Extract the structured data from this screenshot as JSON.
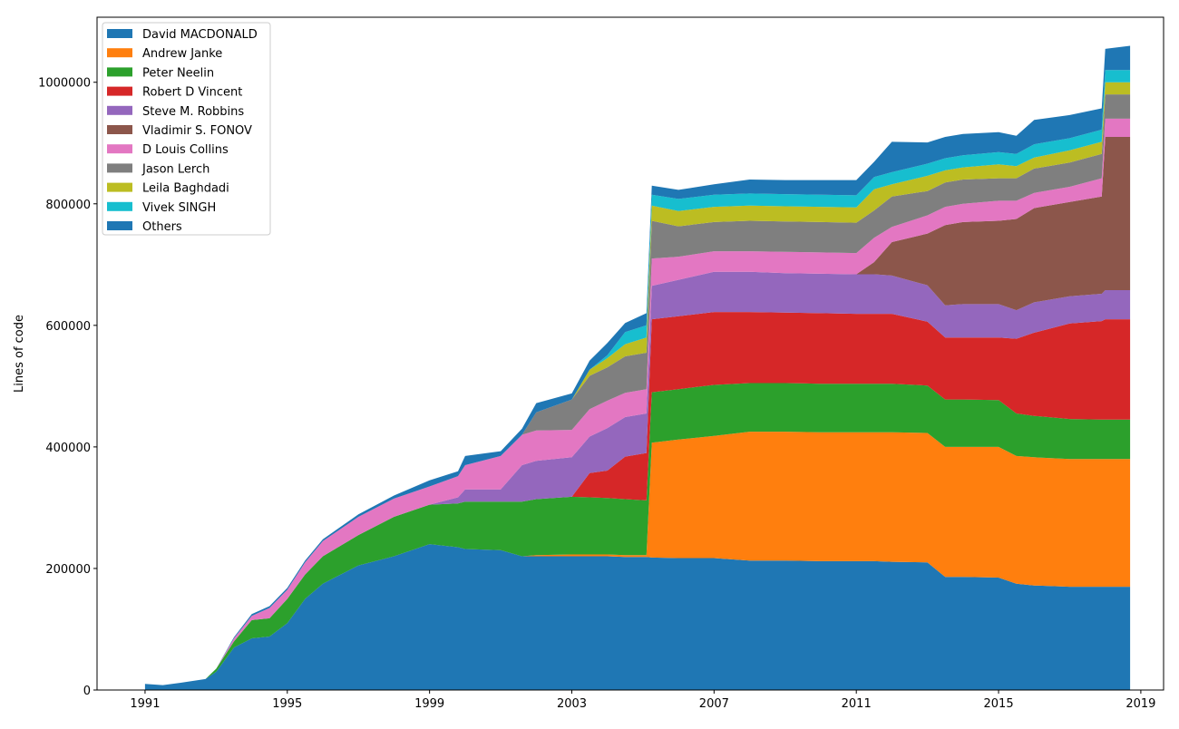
{
  "chart_data": {
    "type": "area",
    "stacked": true,
    "title": "",
    "xlabel": "",
    "ylabel": "Lines of code",
    "xlim": [
      1989.65,
      2019.64
    ],
    "ylim": [
      0,
      1107000
    ],
    "xticks": [
      1991,
      1995,
      1999,
      2003,
      2007,
      2011,
      2015,
      2019
    ],
    "yticks": [
      0,
      200000,
      400000,
      600000,
      800000,
      1000000
    ],
    "grid": false,
    "legend_position": "upper-left",
    "x": [
      1991,
      1991.5,
      1992,
      1992.7,
      1993,
      1993.5,
      1994,
      1994.5,
      1995,
      1995.5,
      1996,
      1997,
      1998,
      1999,
      1999.8,
      2000,
      2001,
      2001.6,
      2002,
      2003,
      2003.5,
      2004,
      2004.5,
      2005.1,
      2005.25,
      2006,
      2007,
      2008,
      2009,
      2010,
      2011,
      2011.5,
      2012,
      2013,
      2013.5,
      2014,
      2015,
      2015.5,
      2016,
      2017,
      2017.9,
      2018.0,
      2018.7
    ],
    "series": [
      {
        "name": "David MACDONALD",
        "color": "#1f77b4",
        "values": [
          10000,
          8000,
          12000,
          18000,
          30000,
          70000,
          85000,
          88000,
          110000,
          150000,
          175000,
          205000,
          220000,
          240000,
          235000,
          232000,
          230000,
          220000,
          220000,
          220000,
          220000,
          220000,
          219000,
          219000,
          218000,
          217000,
          217000,
          213000,
          213000,
          212000,
          212000,
          212000,
          211000,
          210000,
          186000,
          186000,
          185000,
          175000,
          172000,
          170000,
          170000,
          170000,
          170000
        ]
      },
      {
        "name": "Andrew Janke",
        "color": "#ff7f0e",
        "values": [
          0,
          0,
          0,
          0,
          0,
          0,
          0,
          0,
          0,
          0,
          0,
          0,
          0,
          0,
          0,
          0,
          0,
          0,
          2000,
          3000,
          3000,
          3000,
          3000,
          3000,
          189000,
          195000,
          201000,
          212000,
          212000,
          212000,
          212000,
          212000,
          213000,
          213000,
          214000,
          214000,
          215000,
          210000,
          211000,
          210000,
          210000,
          210000,
          210000
        ]
      },
      {
        "name": "Peter Neelin",
        "color": "#2ca02c",
        "values": [
          0,
          0,
          0,
          0,
          5000,
          10000,
          30000,
          30000,
          40000,
          40000,
          45000,
          50000,
          65000,
          65000,
          72000,
          78000,
          80000,
          90000,
          92000,
          95000,
          94000,
          93000,
          92000,
          90000,
          83000,
          83000,
          84000,
          80000,
          80000,
          80000,
          80000,
          80000,
          80000,
          78000,
          78000,
          78000,
          77000,
          70000,
          68000,
          66000,
          65000,
          65000,
          65000
        ]
      },
      {
        "name": "Robert D Vincent",
        "color": "#d62728",
        "values": [
          0,
          0,
          0,
          0,
          0,
          0,
          0,
          0,
          0,
          0,
          0,
          0,
          0,
          0,
          0,
          0,
          0,
          0,
          0,
          0,
          40000,
          45000,
          70000,
          78000,
          120000,
          120000,
          120000,
          117000,
          116000,
          116000,
          115000,
          115000,
          115000,
          105000,
          102000,
          102000,
          103000,
          123000,
          137000,
          157000,
          162000,
          165000,
          165000
        ]
      },
      {
        "name": "Steve M. Robbins",
        "color": "#9467bd",
        "values": [
          0,
          0,
          0,
          0,
          0,
          0,
          0,
          0,
          0,
          0,
          0,
          0,
          0,
          0,
          10000,
          20000,
          20000,
          60000,
          63000,
          65000,
          60000,
          70000,
          65000,
          65000,
          55000,
          60000,
          66000,
          66000,
          65000,
          65000,
          65000,
          65000,
          63000,
          60000,
          53000,
          55000,
          55000,
          47000,
          50000,
          45000,
          45000,
          48000,
          48000
        ]
      },
      {
        "name": "Vladimir S. FONOV",
        "color": "#8c564b",
        "values": [
          0,
          0,
          0,
          0,
          0,
          0,
          0,
          0,
          0,
          0,
          0,
          0,
          0,
          0,
          0,
          0,
          0,
          0,
          0,
          0,
          0,
          0,
          0,
          0,
          0,
          0,
          0,
          0,
          0,
          0,
          0,
          20000,
          55000,
          85000,
          132000,
          135000,
          137000,
          150000,
          155000,
          155000,
          160000,
          252000,
          252000
        ]
      },
      {
        "name": "D Louis Collins",
        "color": "#e377c2",
        "values": [
          0,
          0,
          0,
          0,
          0,
          5000,
          7000,
          17000,
          15000,
          20000,
          25000,
          30000,
          30000,
          30000,
          35000,
          40000,
          55000,
          50000,
          50000,
          45000,
          45000,
          45000,
          40000,
          40000,
          45000,
          38000,
          34000,
          34000,
          35000,
          35000,
          35000,
          40000,
          25000,
          30000,
          30000,
          30000,
          33000,
          30000,
          25000,
          25000,
          30000,
          30000,
          30000
        ]
      },
      {
        "name": "Jason Lerch",
        "color": "#7f7f7f",
        "values": [
          0,
          0,
          0,
          0,
          0,
          0,
          0,
          0,
          0,
          0,
          0,
          0,
          0,
          0,
          0,
          0,
          0,
          0,
          30000,
          50000,
          55000,
          55000,
          60000,
          60000,
          62000,
          50000,
          48000,
          50000,
          50000,
          50000,
          50000,
          45000,
          50000,
          40000,
          40000,
          40000,
          37000,
          37000,
          40000,
          40000,
          40000,
          40000,
          40000
        ]
      },
      {
        "name": "Leila Baghdadi",
        "color": "#bcbd22",
        "values": [
          0,
          0,
          0,
          0,
          0,
          0,
          0,
          0,
          0,
          0,
          0,
          0,
          0,
          0,
          0,
          0,
          0,
          0,
          0,
          0,
          10000,
          15000,
          20000,
          25000,
          25000,
          25000,
          25000,
          25000,
          25000,
          25000,
          25000,
          35000,
          20000,
          25000,
          20000,
          20000,
          23000,
          20000,
          18000,
          20000,
          20000,
          20000,
          20000
        ]
      },
      {
        "name": "Vivek SINGH",
        "color": "#17becf",
        "values": [
          0,
          0,
          0,
          0,
          0,
          0,
          0,
          0,
          0,
          0,
          0,
          0,
          0,
          0,
          0,
          0,
          0,
          0,
          0,
          0,
          0,
          5000,
          20000,
          20000,
          18000,
          20000,
          20000,
          20000,
          20000,
          20000,
          20000,
          20000,
          20000,
          20000,
          20000,
          20000,
          20000,
          20000,
          22000,
          20000,
          20000,
          20000,
          20000
        ]
      },
      {
        "name": "Others",
        "color": "#1f77b4",
        "values": [
          0,
          0,
          0,
          0,
          0,
          2000,
          3000,
          3000,
          3000,
          3000,
          3000,
          4000,
          5000,
          10000,
          8000,
          15000,
          8000,
          10000,
          15000,
          10000,
          15000,
          20000,
          15000,
          20000,
          15000,
          15000,
          17000,
          23000,
          23000,
          24000,
          25000,
          25000,
          50000,
          35000,
          35000,
          35000,
          33000,
          30000,
          40000,
          38000,
          35000,
          35000,
          40000
        ]
      }
    ]
  }
}
